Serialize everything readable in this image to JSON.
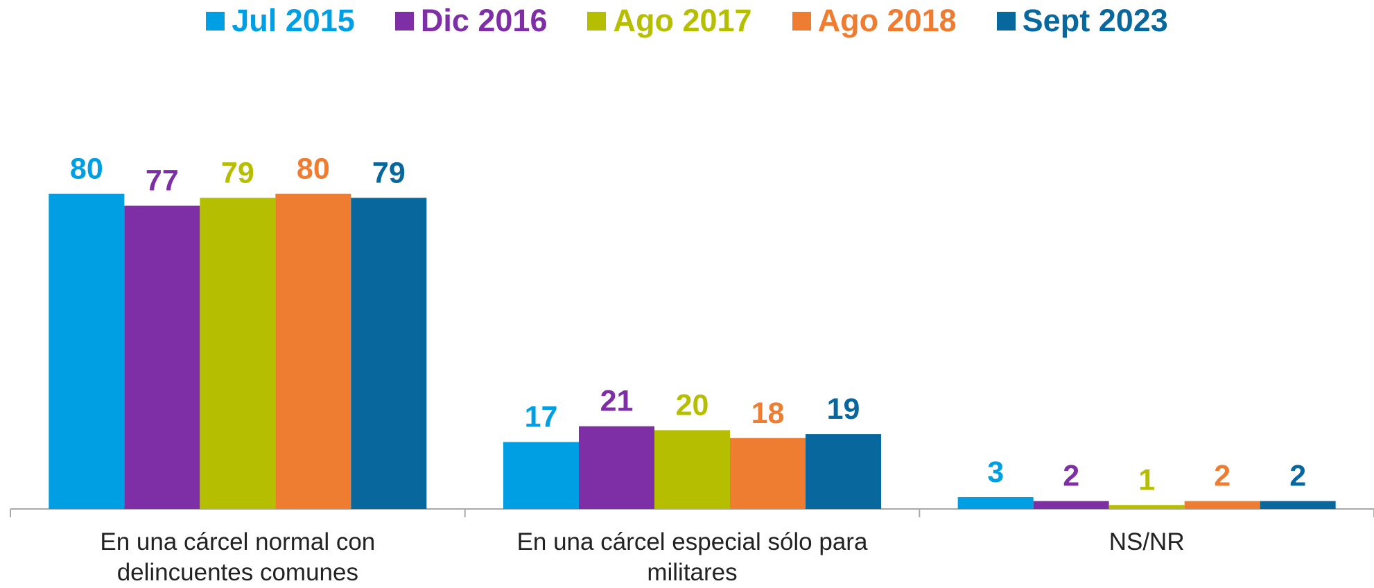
{
  "chart_data": {
    "type": "bar",
    "categories": [
      "En una cárcel normal con delincuentes comunes",
      "En una cárcel especial sólo para militares",
      "NS/NR"
    ],
    "series": [
      {
        "name": "Jul 2015",
        "color": "#009fe3",
        "values": [
          80,
          17,
          3
        ]
      },
      {
        "name": "Dic 2016",
        "color": "#7f2fa5",
        "values": [
          77,
          21,
          2
        ]
      },
      {
        "name": "Ago 2017",
        "color": "#b5be00",
        "values": [
          79,
          20,
          1
        ]
      },
      {
        "name": "Ago 2018",
        "color": "#ee7d31",
        "values": [
          80,
          18,
          2
        ]
      },
      {
        "name": "Sept 2023",
        "color": "#08689e",
        "values": [
          79,
          19,
          2
        ]
      }
    ],
    "ylim": [
      0,
      100
    ]
  }
}
